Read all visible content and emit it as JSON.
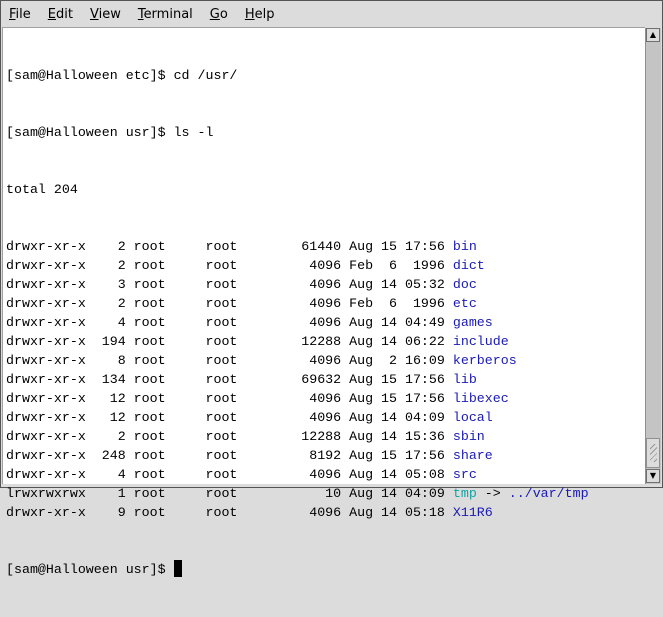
{
  "menubar": {
    "items": [
      {
        "label": "File",
        "accel": "F"
      },
      {
        "label": "Edit",
        "accel": "E"
      },
      {
        "label": "View",
        "accel": "V"
      },
      {
        "label": "Terminal",
        "accel": "T"
      },
      {
        "label": "Go",
        "accel": "G"
      },
      {
        "label": "Help",
        "accel": "H"
      }
    ]
  },
  "colors": {
    "dir": "#1a1ab4",
    "link": "#11a4a4",
    "text": "#000000"
  },
  "terminal": {
    "prompt1": "[sam@Halloween etc]$ cd /usr/",
    "prompt2": "[sam@Halloween usr]$ ls -l",
    "total": "total 204",
    "entries": [
      {
        "perms": "drwxr-xr-x",
        "links": "2",
        "owner": "root",
        "group": "root",
        "size": "61440",
        "month": "Aug",
        "day": "15",
        "time": "17:56",
        "name": "bin",
        "type": "dir"
      },
      {
        "perms": "drwxr-xr-x",
        "links": "2",
        "owner": "root",
        "group": "root",
        "size": "4096",
        "month": "Feb",
        "day": "6",
        "time": "1996",
        "name": "dict",
        "type": "dir"
      },
      {
        "perms": "drwxr-xr-x",
        "links": "3",
        "owner": "root",
        "group": "root",
        "size": "4096",
        "month": "Aug",
        "day": "14",
        "time": "05:32",
        "name": "doc",
        "type": "dir"
      },
      {
        "perms": "drwxr-xr-x",
        "links": "2",
        "owner": "root",
        "group": "root",
        "size": "4096",
        "month": "Feb",
        "day": "6",
        "time": "1996",
        "name": "etc",
        "type": "dir"
      },
      {
        "perms": "drwxr-xr-x",
        "links": "4",
        "owner": "root",
        "group": "root",
        "size": "4096",
        "month": "Aug",
        "day": "14",
        "time": "04:49",
        "name": "games",
        "type": "dir"
      },
      {
        "perms": "drwxr-xr-x",
        "links": "194",
        "owner": "root",
        "group": "root",
        "size": "12288",
        "month": "Aug",
        "day": "14",
        "time": "06:22",
        "name": "include",
        "type": "dir"
      },
      {
        "perms": "drwxr-xr-x",
        "links": "8",
        "owner": "root",
        "group": "root",
        "size": "4096",
        "month": "Aug",
        "day": "2",
        "time": "16:09",
        "name": "kerberos",
        "type": "dir"
      },
      {
        "perms": "drwxr-xr-x",
        "links": "134",
        "owner": "root",
        "group": "root",
        "size": "69632",
        "month": "Aug",
        "day": "15",
        "time": "17:56",
        "name": "lib",
        "type": "dir"
      },
      {
        "perms": "drwxr-xr-x",
        "links": "12",
        "owner": "root",
        "group": "root",
        "size": "4096",
        "month": "Aug",
        "day": "15",
        "time": "17:56",
        "name": "libexec",
        "type": "dir"
      },
      {
        "perms": "drwxr-xr-x",
        "links": "12",
        "owner": "root",
        "group": "root",
        "size": "4096",
        "month": "Aug",
        "day": "14",
        "time": "04:09",
        "name": "local",
        "type": "dir"
      },
      {
        "perms": "drwxr-xr-x",
        "links": "2",
        "owner": "root",
        "group": "root",
        "size": "12288",
        "month": "Aug",
        "day": "14",
        "time": "15:36",
        "name": "sbin",
        "type": "dir"
      },
      {
        "perms": "drwxr-xr-x",
        "links": "248",
        "owner": "root",
        "group": "root",
        "size": "8192",
        "month": "Aug",
        "day": "15",
        "time": "17:56",
        "name": "share",
        "type": "dir"
      },
      {
        "perms": "drwxr-xr-x",
        "links": "4",
        "owner": "root",
        "group": "root",
        "size": "4096",
        "month": "Aug",
        "day": "14",
        "time": "05:08",
        "name": "src",
        "type": "dir"
      },
      {
        "perms": "lrwxrwxrwx",
        "links": "1",
        "owner": "root",
        "group": "root",
        "size": "10",
        "month": "Aug",
        "day": "14",
        "time": "04:09",
        "name": "tmp",
        "type": "link",
        "arrow": "->",
        "target": "../var/tmp"
      },
      {
        "perms": "drwxr-xr-x",
        "links": "9",
        "owner": "root",
        "group": "root",
        "size": "4096",
        "month": "Aug",
        "day": "14",
        "time": "05:18",
        "name": "X11R6",
        "type": "dir"
      }
    ],
    "prompt3": "[sam@Halloween usr]$ "
  }
}
